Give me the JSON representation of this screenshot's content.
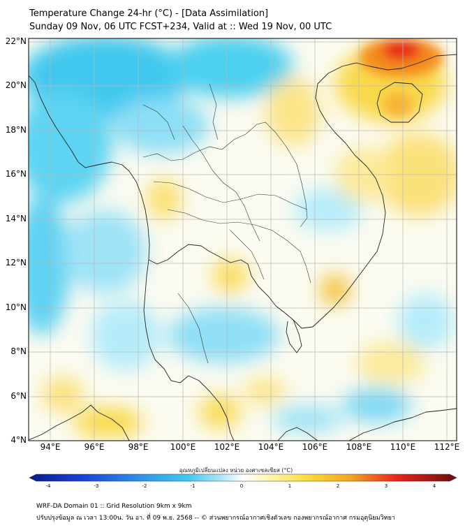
{
  "header": {
    "title": "Temperature Change 24-hr (°C) - [Data Assimilation]",
    "subtitle": "Sunday 09 Nov, 06 UTC FCST+234, Valid at :: Wed 19 Nov, 00 UTC"
  },
  "map": {
    "lat_labels": [
      "22°N",
      "20°N",
      "18°N",
      "16°N",
      "14°N",
      "12°N",
      "10°N",
      "8°N",
      "6°N",
      "4°N"
    ],
    "lon_labels": [
      "94°E",
      "96°E",
      "98°E",
      "100°E",
      "102°E",
      "104°E",
      "106°E",
      "108°E",
      "110°E",
      "112°E"
    ],
    "lat_range": [
      4,
      22.2
    ],
    "lon_range": [
      93,
      112.6
    ]
  },
  "colorbar": {
    "label": "อุณหภูมิเปลี่ยนแปลง หน่วย องศาเซลเซียส (°C)",
    "ticks": [
      "-4",
      "-3",
      "-2",
      "-1",
      "0",
      "1",
      "2",
      "3",
      "4"
    ],
    "range": [
      -4,
      4
    ]
  },
  "footer": {
    "line1": "WRF-DA Domain 01 :: Grid Resolution 9km x 9km",
    "line2": "ปรับปรุงข้อมูล ณ เวลา 13:00น. วัน อา. ที่ 09 พ.ย. 2568 -- © ส่วนพยากรณ์อากาศเชิงตัวเลข กองพยากรณ์อากาศ กรมอุตุนิยมวิทยา"
  },
  "colors": {
    "cold": "#3fc8ee",
    "light_cold": "#b5ecfa",
    "neutral": "#fbfbf1",
    "warm": "#f9d94a",
    "hot": "#f38b1c",
    "very_hot": "#e8241a",
    "coast": "#222222",
    "grid": "#b8b8b8"
  }
}
